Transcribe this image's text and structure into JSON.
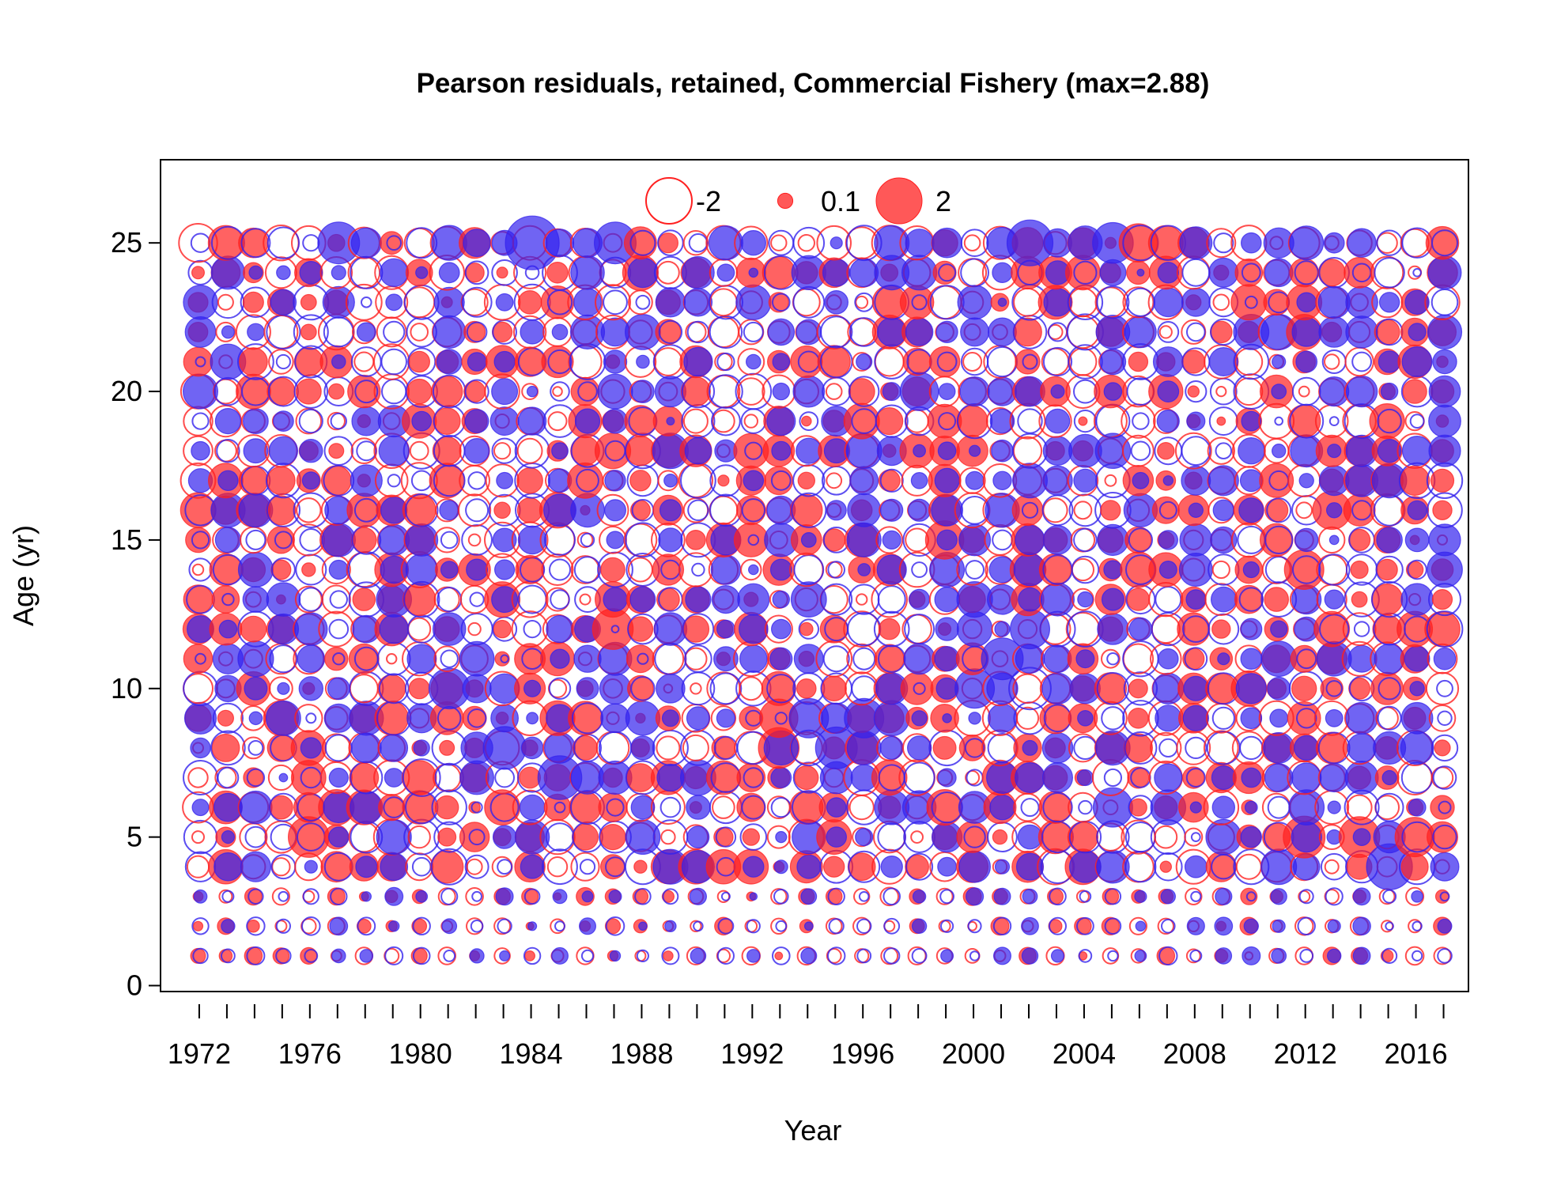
{
  "chart_data": {
    "type": "scatter",
    "subtype": "bubble-residuals",
    "title": "Pearson residuals, retained, Commercial Fishery (max=2.88)",
    "xlabel": "Year",
    "ylabel": "Age (yr)",
    "xlim": [
      1970.6,
      2017.9
    ],
    "ylim": [
      -0.2,
      27.8
    ],
    "x_ticks": [
      1972,
      1973,
      1974,
      1975,
      1976,
      1977,
      1978,
      1979,
      1980,
      1981,
      1982,
      1983,
      1984,
      1985,
      1986,
      1987,
      1988,
      1989,
      1990,
      1991,
      1992,
      1993,
      1994,
      1995,
      1996,
      1997,
      1998,
      1999,
      2000,
      2001,
      2002,
      2003,
      2004,
      2005,
      2006,
      2007,
      2008,
      2009,
      2010,
      2011,
      2012,
      2013,
      2014,
      2015,
      2016,
      2017
    ],
    "x_tick_labels": [
      {
        "value": 1972,
        "label": "1972"
      },
      {
        "value": 1976,
        "label": "1976"
      },
      {
        "value": 1980,
        "label": "1980"
      },
      {
        "value": 1984,
        "label": "1984"
      },
      {
        "value": 1988,
        "label": "1988"
      },
      {
        "value": 1992,
        "label": "1992"
      },
      {
        "value": 1996,
        "label": "1996"
      },
      {
        "value": 2000,
        "label": "2000"
      },
      {
        "value": 2004,
        "label": "2004"
      },
      {
        "value": 2008,
        "label": "2008"
      },
      {
        "value": 2012,
        "label": "2012"
      },
      {
        "value": 2016,
        "label": "2016"
      }
    ],
    "y_ticks": [
      {
        "value": 0,
        "label": "0"
      },
      {
        "value": 5,
        "label": "5"
      },
      {
        "value": 10,
        "label": "10"
      },
      {
        "value": 15,
        "label": "15"
      },
      {
        "value": 20,
        "label": "20"
      },
      {
        "value": 25,
        "label": "25"
      }
    ],
    "max_abs_residual": 2.88,
    "grid": false,
    "legend": {
      "placement": "top-center",
      "items": [
        {
          "value": -2,
          "label": "-2",
          "style": "open"
        },
        {
          "value": 0.1,
          "label": "0.1",
          "style": "filled"
        },
        {
          "value": 2,
          "label": "2",
          "style": "filled"
        }
      ]
    },
    "series": [
      {
        "name": "",
        "color": "#ff0000",
        "offset": 0
      },
      {
        "name": "",
        "color": "#2b1ef0",
        "offset": 0.12
      }
    ],
    "colors": {
      "red": "#ff2020",
      "blue": "#3322ee",
      "axis": "#000000"
    },
    "years": [
      1972,
      1973,
      1974,
      1975,
      1976,
      1977,
      1978,
      1979,
      1980,
      1981,
      1982,
      1983,
      1984,
      1985,
      1986,
      1987,
      1988,
      1989,
      1990,
      1991,
      1992,
      1993,
      1994,
      1995,
      1996,
      1997,
      1998,
      1999,
      2000,
      2001,
      2002,
      2003,
      2004,
      2005,
      2006,
      2007,
      2008,
      2009,
      2010,
      2011,
      2012,
      2013,
      2014,
      2015,
      2016,
      2017
    ],
    "ages": [
      1,
      2,
      3,
      4,
      5,
      6,
      7,
      8,
      9,
      10,
      11,
      12,
      13,
      14,
      15,
      16,
      17,
      18,
      19,
      20,
      21,
      22,
      23,
      24,
      25
    ],
    "highlight_points": [
      {
        "year": 1984,
        "age": 25,
        "value": 2.88,
        "series": 1
      },
      {
        "year": 1977,
        "age": 25,
        "value": 1.6,
        "series": 1
      },
      {
        "year": 1987,
        "age": 25,
        "value": 1.6,
        "series": 1
      },
      {
        "year": 2002,
        "age": 25,
        "value": 2.0,
        "series": 1
      },
      {
        "year": 2005,
        "age": 25,
        "value": 1.5,
        "series": 1
      },
      {
        "year": 2006,
        "age": 25,
        "value": 1.3,
        "series": 0
      },
      {
        "year": 1985,
        "age": 7,
        "value": 1.8,
        "series": 1
      },
      {
        "year": 1983,
        "age": 8,
        "value": 1.7,
        "series": 1
      },
      {
        "year": 1995,
        "age": 8,
        "value": 1.6,
        "series": 1
      },
      {
        "year": 1993,
        "age": 8,
        "value": 1.5,
        "series": 0
      },
      {
        "year": 1976,
        "age": 5,
        "value": 1.5,
        "series": 0
      },
      {
        "year": 1987,
        "age": 12,
        "value": 1.5,
        "series": 0
      },
      {
        "year": 2001,
        "age": 11,
        "value": 1.6,
        "series": 1
      },
      {
        "year": 2002,
        "age": 10,
        "value": -1.6,
        "series": 1
      },
      {
        "year": 2000,
        "age": 10,
        "value": 1.4,
        "series": 1
      },
      {
        "year": 1981,
        "age": 10,
        "value": 1.5,
        "series": 1
      },
      {
        "year": 2002,
        "age": 12,
        "value": 1.4,
        "series": 1
      },
      {
        "year": 2015,
        "age": 4,
        "value": 2.0,
        "series": 1
      },
      {
        "year": 2012,
        "age": 5,
        "value": 1.6,
        "series": 0
      },
      {
        "year": 2014,
        "age": 5,
        "value": 1.5,
        "series": 0
      },
      {
        "year": 2016,
        "age": 5,
        "value": 1.4,
        "series": 0
      },
      {
        "year": 2012,
        "age": 14,
        "value": 1.4,
        "series": 0
      },
      {
        "year": 2013,
        "age": 16,
        "value": 1.3,
        "series": 0
      },
      {
        "year": 1998,
        "age": 20,
        "value": 1.3,
        "series": 1
      },
      {
        "year": 1999,
        "age": 15,
        "value": 1.3,
        "series": 0
      },
      {
        "year": 2005,
        "age": 6,
        "value": 1.4,
        "series": 1
      },
      {
        "year": 1980,
        "age": 7,
        "value": -1.2,
        "series": 1
      },
      {
        "year": 1993,
        "age": 9,
        "value": 1.3,
        "series": 0
      },
      {
        "year": 1994,
        "age": 9,
        "value": 1.4,
        "series": 1
      },
      {
        "year": 1996,
        "age": 9,
        "value": 1.4,
        "series": 1
      },
      {
        "year": 1972,
        "age": 25,
        "value": -1.3,
        "series": 0
      }
    ]
  }
}
